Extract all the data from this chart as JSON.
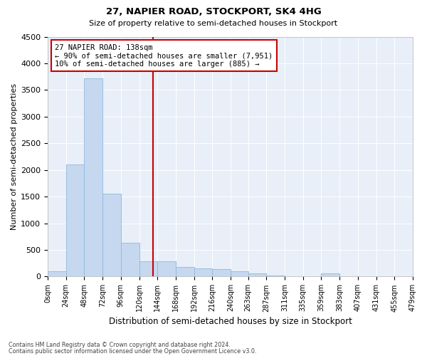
{
  "title": "27, NAPIER ROAD, STOCKPORT, SK4 4HG",
  "subtitle": "Size of property relative to semi-detached houses in Stockport",
  "xlabel": "Distribution of semi-detached houses by size in Stockport",
  "ylabel": "Number of semi-detached properties",
  "footnote1": "Contains HM Land Registry data © Crown copyright and database right 2024.",
  "footnote2": "Contains public sector information licensed under the Open Government Licence v3.0.",
  "annotation_title": "27 NAPIER ROAD: 138sqm",
  "annotation_line1": "← 90% of semi-detached houses are smaller (7,951)",
  "annotation_line2": "10% of semi-detached houses are larger (885) →",
  "property_size": 138,
  "bar_color": "#c5d8ef",
  "bar_edgecolor": "#8fb8dc",
  "vline_color": "#cc0000",
  "annotation_box_edgecolor": "#cc0000",
  "background_color": "#e8eff8",
  "grid_color": "#ffffff",
  "ylim": [
    0,
    4500
  ],
  "yticks": [
    0,
    500,
    1000,
    1500,
    2000,
    2500,
    3000,
    3500,
    4000,
    4500
  ],
  "bin_edges": [
    0,
    24,
    48,
    72,
    96,
    120,
    144,
    168,
    192,
    216,
    240,
    263,
    287,
    311,
    335,
    359,
    383,
    407,
    431,
    455,
    479
  ],
  "bar_heights": [
    100,
    2100,
    3720,
    1560,
    640,
    290,
    290,
    175,
    150,
    140,
    100,
    60,
    20,
    5,
    0,
    60,
    0,
    0,
    0,
    0
  ]
}
